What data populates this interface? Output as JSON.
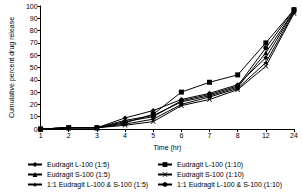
{
  "chart_data": {
    "type": "line",
    "x_label": "Time (hr)",
    "y_label": "Cumulative percent drug release",
    "categories": [
      "1",
      "2",
      "3",
      "4",
      "5",
      "6",
      "7",
      "8",
      "12",
      "24"
    ],
    "ylim": [
      0,
      100
    ],
    "yticks": [
      0,
      10,
      20,
      30,
      40,
      50,
      60,
      70,
      80,
      90,
      100
    ],
    "grid": false,
    "legend": "bottom",
    "series": [
      {
        "name": "Eudragit L-100 (1:5)",
        "color": "#000000",
        "marker": "diamond",
        "values": [
          0,
          1,
          1,
          9,
          15,
          24,
          29,
          36,
          58,
          96
        ]
      },
      {
        "name": "Eudragit L-100 (1:10)",
        "color": "#000000",
        "marker": "square",
        "values": [
          0,
          1,
          1,
          5,
          12,
          30,
          38,
          44,
          70,
          97
        ]
      },
      {
        "name": "Eudragit S-100 (1:5)",
        "color": "#000000",
        "marker": "triangle",
        "values": [
          0,
          1,
          1,
          7,
          11,
          22,
          27,
          34,
          62,
          96
        ]
      },
      {
        "name": "Eudragit S-100 (1:10)",
        "color": "#000000",
        "marker": "x",
        "values": [
          0,
          1,
          1,
          3,
          6,
          19,
          24,
          32,
          51,
          94
        ]
      },
      {
        "name": "1:1 Eudragit L-100 & S-100 (1:5)",
        "color": "#000000",
        "marker": "star",
        "values": [
          0,
          1,
          1,
          4,
          8,
          20,
          26,
          33,
          54,
          95
        ]
      },
      {
        "name": "1:1 Eudragit L-100 & S-100 (1:10)",
        "color": "#000000",
        "marker": "circle",
        "values": [
          0,
          1,
          1,
          6,
          10,
          23,
          28,
          35,
          66,
          97
        ]
      }
    ]
  }
}
